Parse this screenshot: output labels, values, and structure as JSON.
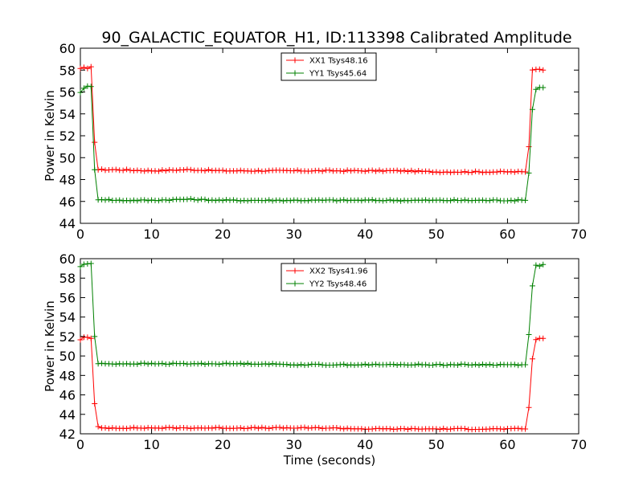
{
  "chart_data": [
    {
      "type": "line",
      "title": "90_GALACTIC_EQUATOR_H1, ID:113398 Calibrated Amplitude",
      "xlabel": "",
      "ylabel": "Power in Kelvin",
      "xlim": [
        0,
        70
      ],
      "ylim": [
        44,
        60
      ],
      "xticks": [
        0,
        10,
        20,
        30,
        40,
        50,
        60,
        70
      ],
      "yticks": [
        44,
        46,
        48,
        50,
        52,
        54,
        56,
        58,
        60
      ],
      "grid": false,
      "legend_position": "top-center",
      "series": [
        {
          "name": "XX1 Tsys48.16",
          "color": "#ff0000",
          "x": [
            0,
            0.5,
            1.0,
            1.5,
            2.0,
            2.5,
            3.0,
            5.0,
            10.0,
            15.0,
            20.0,
            25.0,
            30.0,
            35.0,
            40.0,
            45.0,
            50.0,
            55.0,
            60.0,
            62.5,
            63.0,
            63.5,
            64.0,
            64.5,
            65.0
          ],
          "y": [
            58.1,
            58.2,
            58.2,
            58.3,
            51.4,
            48.9,
            48.9,
            48.9,
            48.8,
            48.9,
            48.8,
            48.8,
            48.8,
            48.8,
            48.8,
            48.8,
            48.7,
            48.7,
            48.7,
            48.7,
            51.0,
            58.0,
            58.1,
            58.1,
            58.0
          ]
        },
        {
          "name": "YY1 Tsys45.64",
          "color": "#008000",
          "x": [
            0,
            0.5,
            1.0,
            1.5,
            2.0,
            2.5,
            3.0,
            5.0,
            10.0,
            15.0,
            20.0,
            25.0,
            30.0,
            35.0,
            40.0,
            45.0,
            50.0,
            55.0,
            60.0,
            62.5,
            63.0,
            63.5,
            64.0,
            64.5,
            65.0
          ],
          "y": [
            56.0,
            56.3,
            56.5,
            56.5,
            48.9,
            46.2,
            46.2,
            46.1,
            46.1,
            46.2,
            46.1,
            46.1,
            46.1,
            46.1,
            46.1,
            46.1,
            46.1,
            46.1,
            46.1,
            46.1,
            48.6,
            54.4,
            56.3,
            56.4,
            56.4
          ]
        }
      ]
    },
    {
      "type": "line",
      "title": "",
      "xlabel": "Time (seconds)",
      "ylabel": "Power in Kelvin",
      "xlim": [
        0,
        70
      ],
      "ylim": [
        42,
        60
      ],
      "xticks": [
        0,
        10,
        20,
        30,
        40,
        50,
        60,
        70
      ],
      "yticks": [
        42,
        44,
        46,
        48,
        50,
        52,
        54,
        56,
        58,
        60
      ],
      "grid": false,
      "legend_position": "top-center",
      "series": [
        {
          "name": "XX2 Tsys41.96",
          "color": "#ff0000",
          "x": [
            0,
            0.5,
            1.0,
            1.5,
            2.0,
            2.5,
            3.0,
            5.0,
            10.0,
            15.0,
            20.0,
            25.0,
            30.0,
            35.0,
            40.0,
            45.0,
            50.0,
            55.0,
            60.0,
            62.5,
            63.0,
            63.5,
            64.0,
            64.5,
            65.0
          ],
          "y": [
            51.7,
            51.9,
            51.9,
            51.8,
            45.1,
            42.7,
            42.6,
            42.6,
            42.6,
            42.6,
            42.6,
            42.6,
            42.6,
            42.6,
            42.5,
            42.5,
            42.5,
            42.5,
            42.5,
            42.5,
            44.7,
            49.7,
            51.7,
            51.8,
            51.8
          ]
        },
        {
          "name": "YY2 Tsys48.46",
          "color": "#008000",
          "x": [
            0,
            0.5,
            1.0,
            1.5,
            2.0,
            2.5,
            3.0,
            5.0,
            10.0,
            15.0,
            20.0,
            25.0,
            30.0,
            35.0,
            40.0,
            45.0,
            50.0,
            55.0,
            60.0,
            62.5,
            63.0,
            63.5,
            64.0,
            64.5,
            65.0
          ],
          "y": [
            59.2,
            59.4,
            59.5,
            59.5,
            52.0,
            49.2,
            49.2,
            49.2,
            49.2,
            49.2,
            49.2,
            49.2,
            49.1,
            49.1,
            49.1,
            49.1,
            49.1,
            49.1,
            49.1,
            49.1,
            52.2,
            57.2,
            59.3,
            59.3,
            59.4
          ]
        }
      ]
    }
  ]
}
